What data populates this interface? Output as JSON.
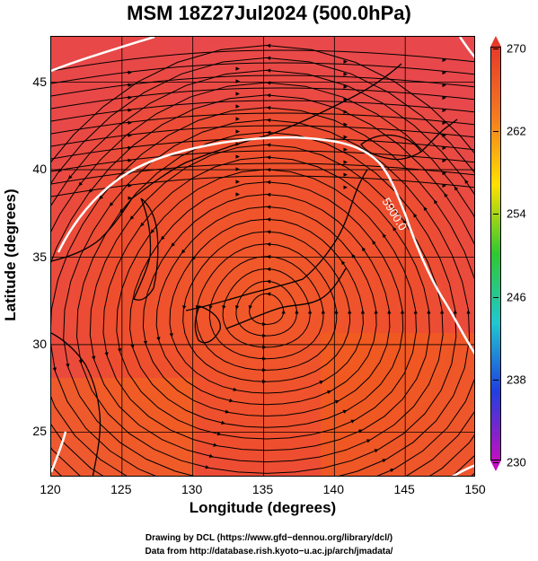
{
  "title": "MSM 18Z27Jul2024 (500.0hPa)",
  "xlabel": "Longitude (degrees)",
  "ylabel": "Latitude  (degrees)",
  "xticks": [
    "120",
    "125",
    "130",
    "135",
    "140",
    "145",
    "150"
  ],
  "yticks": [
    "25",
    "30",
    "35",
    "40",
    "45"
  ],
  "colorbar": {
    "ticks": [
      "270",
      "262",
      "254",
      "246",
      "238",
      "230"
    ],
    "colors": [
      "#e83a2a",
      "#f47a20",
      "#ffe000",
      "#30c830",
      "#20c8d0",
      "#2040e0",
      "#c010c0"
    ]
  },
  "contour": {
    "label": "5900.0",
    "color": "#ffffff"
  },
  "map_extent": {
    "lon": [
      120,
      150
    ],
    "lat": [
      22.4,
      47.6
    ]
  },
  "field_colors": {
    "primary": "#f04a28",
    "secondary": "#f25c20",
    "pink": "#e85a5a"
  },
  "footer": {
    "line1": "Drawing by DCL (https://www.gfd−dennou.org/library/dcl/)",
    "line2": "Data from http://database.rish.kyoto−u.ac.jp/arch/jmadata/"
  }
}
